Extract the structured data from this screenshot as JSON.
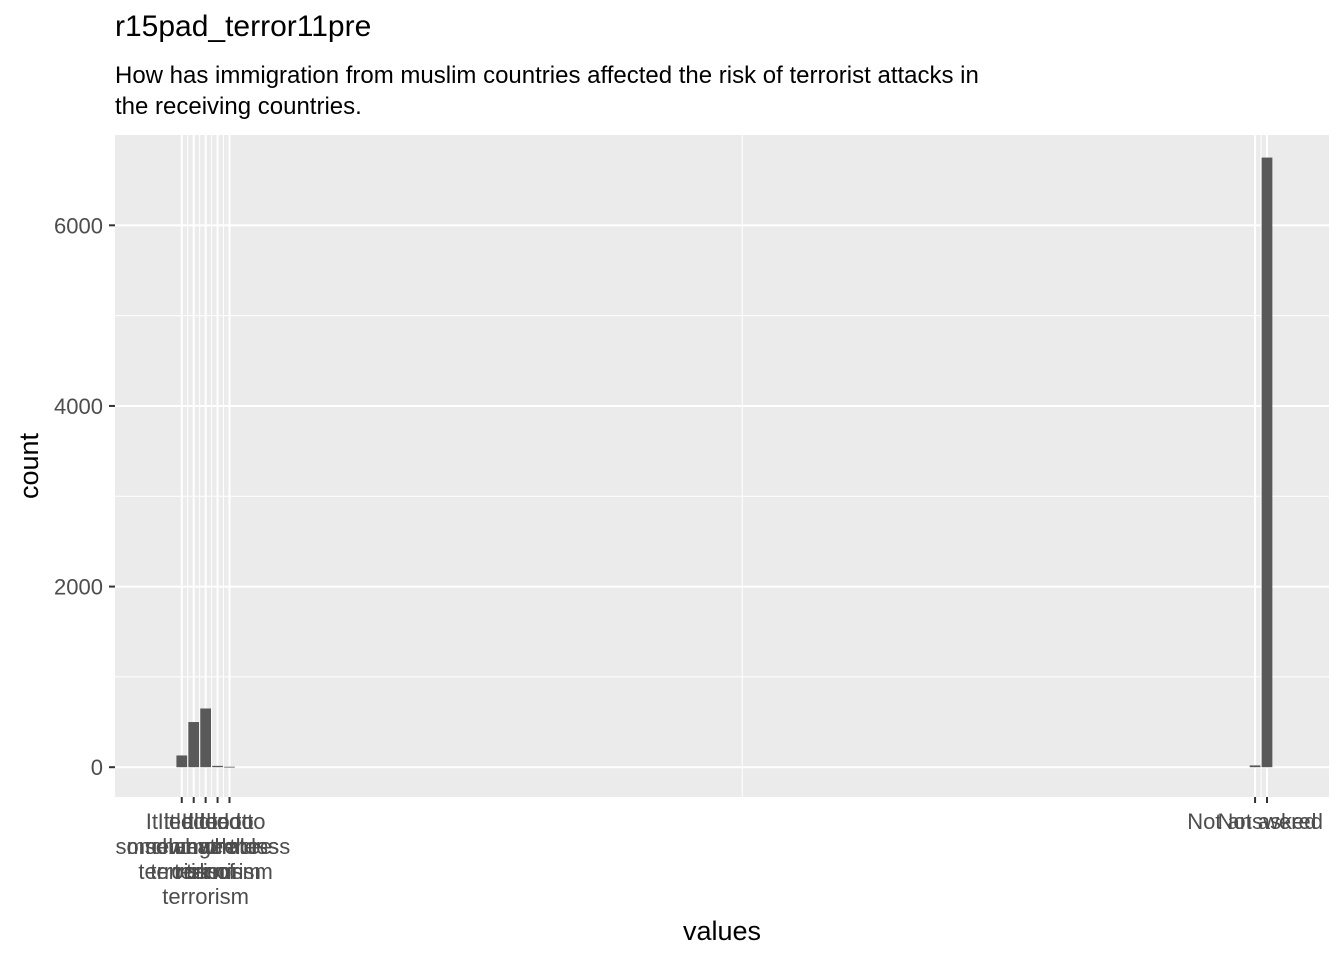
{
  "chart_data": {
    "type": "bar",
    "title": "r15pad_terror11pre",
    "subtitle": "How has immigration from muslim countries affected the risk of terrorist attacks in the receiving countries.",
    "xlabel": "values",
    "ylabel": "count",
    "ylim": [
      -330,
      7000
    ],
    "yticks": [
      0,
      2000,
      4000,
      6000
    ],
    "xlim": [
      -4.6,
      97.2
    ],
    "grid": true,
    "bar_color": "#595959",
    "panel_color": "#ebebeb",
    "categories": [
      {
        "x": 1,
        "label": "It led to much more terrorism",
        "value": 130
      },
      {
        "x": 2,
        "label": "It led to somewhat more terrorism",
        "value": 500
      },
      {
        "x": 3,
        "label": "It did not change the risk of terrorism",
        "value": 650
      },
      {
        "x": 4,
        "label": "It led to somewhat less terrorism",
        "value": 15
      },
      {
        "x": 5,
        "label": "It led to much less terrorism",
        "value": 5
      },
      {
        "x": 91,
        "label": "Not answered",
        "value": 20
      },
      {
        "x": 92,
        "label": "Not asked",
        "value": 6750
      }
    ]
  }
}
